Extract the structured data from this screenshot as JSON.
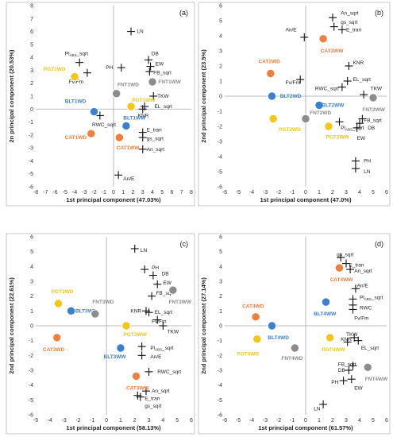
{
  "colors": {
    "orange": "#f07f3c",
    "blue": "#3a7fd0",
    "gray": "#8c8c8c",
    "yellow": "#f5c518"
  },
  "chart_data": [
    {
      "type": "scatter",
      "panel": "(a)",
      "xlabel": "1st principal component (47.03%)",
      "ylabel": "2n principal component (20.53%)",
      "xlim": [
        -8,
        8
      ],
      "ylim": [
        -6,
        8
      ],
      "xticks": [
        -8,
        -7,
        -6,
        -5,
        -4,
        -3,
        -2,
        -1,
        0,
        1,
        2,
        3,
        4,
        5,
        6,
        7,
        8
      ],
      "yticks": [
        -6,
        -5,
        -4,
        -3,
        -2,
        -1,
        0,
        1,
        2,
        3,
        4,
        5,
        6,
        7,
        8
      ],
      "points": [
        {
          "label": "PGT1WD",
          "x": -4.0,
          "y": 2.5,
          "color": "yellow",
          "lx": -7.2,
          "ly": 3.1
        },
        {
          "label": "BLT1WD",
          "x": -2.0,
          "y": -0.2,
          "color": "blue",
          "lx": -5.0,
          "ly": 0.6
        },
        {
          "label": "CAT1WD",
          "x": -2.3,
          "y": -1.9,
          "color": "orange",
          "lx": -5.0,
          "ly": -2.2
        },
        {
          "label": "FNT1WD",
          "x": 0.3,
          "y": 1.2,
          "color": "gray",
          "lx": 0.4,
          "ly": 1.9
        },
        {
          "label": "PGT1WW",
          "x": 1.8,
          "y": 0.2,
          "color": "yellow",
          "lx": 1.9,
          "ly": 0.7
        },
        {
          "label": "BLT1WW",
          "x": 1.3,
          "y": -1.3,
          "color": "blue",
          "lx": 1.0,
          "ly": -0.7
        },
        {
          "label": "CAT1WW",
          "x": 0.6,
          "y": -2.2,
          "color": "orange",
          "lx": 0.3,
          "ly": -3.0
        },
        {
          "label": "FNT1WW",
          "x": 4.0,
          "y": 2.1,
          "color": "gray",
          "lx": 4.6,
          "ly": 2.1
        }
      ],
      "variables": [
        {
          "label": "LN",
          "x": 1.8,
          "y": 6.0,
          "lx": 2.4,
          "ly": 6.0
        },
        {
          "label": "PH",
          "x": 0.8,
          "y": 3.2,
          "lx": -0.8,
          "ly": 3.2
        },
        {
          "label": "DB",
          "x": 3.6,
          "y": 3.8,
          "lx": 3.9,
          "ly": 4.3
        },
        {
          "label": "EW",
          "x": 3.8,
          "y": 3.3,
          "lx": 4.3,
          "ly": 3.5
        },
        {
          "label": "FB_sqrt",
          "x": 3.7,
          "y": 2.9,
          "lx": 4.1,
          "ly": 2.8
        },
        {
          "label": "Pl_ABS_sqrt",
          "x": -3.5,
          "y": 3.6,
          "lx": -5.0,
          "ly": 4.3
        },
        {
          "label": "Fv/Fm",
          "x": -2.7,
          "y": 2.8,
          "lx": -4.6,
          "ly": 2.1
        },
        {
          "label": "TKW",
          "x": 4.1,
          "y": 1.0,
          "lx": 4.5,
          "ly": 1.0
        },
        {
          "label": "EL_sqrt",
          "x": 3.2,
          "y": 0.2,
          "lx": 4.2,
          "ly": 0.2
        },
        {
          "label": "KNR",
          "x": 3.0,
          "y": 0.0,
          "lx": 2.5,
          "ly": -0.5
        },
        {
          "label": "RWC_sqrt",
          "x": -1.4,
          "y": -0.5,
          "lx": -2.2,
          "ly": -1.2
        },
        {
          "label": "E_tran",
          "x": 3.0,
          "y": -1.8,
          "lx": 3.4,
          "ly": -1.6
        },
        {
          "label": "gs_sqrt",
          "x": 3.0,
          "y": -2.2,
          "lx": 3.4,
          "ly": -2.3
        },
        {
          "label": "An_sqrt",
          "x": 3.0,
          "y": -3.1,
          "lx": 3.4,
          "ly": -3.1
        },
        {
          "label": "An/E",
          "x": 0.5,
          "y": -5.1,
          "lx": 1.0,
          "ly": -5.4
        }
      ]
    },
    {
      "type": "scatter",
      "panel": "(b)",
      "xlabel": "1st principal component (47.0%)",
      "ylabel": "2nd principal component (23.5%)",
      "xlim": [
        -6,
        6
      ],
      "ylim": [
        -6,
        6
      ],
      "xticks": [
        -6,
        -5,
        -4,
        -3,
        -2,
        -1,
        0,
        1,
        2,
        3,
        4,
        5,
        6
      ],
      "yticks": [
        -6,
        -5,
        -4,
        -3,
        -2,
        -1,
        0,
        1,
        2,
        3,
        4,
        5,
        6
      ],
      "points": [
        {
          "label": "CAT2WW",
          "x": 1.3,
          "y": 3.8,
          "color": "orange",
          "lx": 1.1,
          "ly": 3.0
        },
        {
          "label": "CAT2WD",
          "x": -2.6,
          "y": 1.5,
          "color": "orange",
          "lx": -3.5,
          "ly": 2.3
        },
        {
          "label": "BLT2WD",
          "x": -2.5,
          "y": 0.0,
          "color": "blue",
          "lx": -1.9,
          "ly": 0.0
        },
        {
          "label": "BLT2WW",
          "x": 1.0,
          "y": -0.6,
          "color": "blue",
          "lx": 1.2,
          "ly": -0.6
        },
        {
          "label": "PGT2WD",
          "x": -2.4,
          "y": -1.5,
          "color": "yellow",
          "lx": -2.0,
          "ly": -2.2
        },
        {
          "label": "FNT2WD",
          "x": 0.0,
          "y": -1.5,
          "color": "gray",
          "lx": 0.3,
          "ly": -1.1
        },
        {
          "label": "PGT2WW",
          "x": 1.7,
          "y": -2.0,
          "color": "yellow",
          "lx": 1.5,
          "ly": -2.7
        },
        {
          "label": "FNT2WW",
          "x": 5.0,
          "y": -0.1,
          "color": "gray",
          "lx": 4.2,
          "ly": -0.9
        }
      ],
      "variables": [
        {
          "label": "An_sqrt",
          "x": 2.0,
          "y": 5.2,
          "lx": 2.6,
          "ly": 5.5
        },
        {
          "label": "gs_sqrt",
          "x": 2.1,
          "y": 4.6,
          "lx": 2.6,
          "ly": 4.9
        },
        {
          "label": "E_tran",
          "x": 2.7,
          "y": 4.4,
          "lx": 3.0,
          "ly": 4.4
        },
        {
          "label": "An/E",
          "x": -0.1,
          "y": 3.9,
          "lx": -1.5,
          "ly": 4.4
        },
        {
          "label": "KNR",
          "x": 3.2,
          "y": 2.0,
          "lx": 3.5,
          "ly": 2.2
        },
        {
          "label": "EL_sqrt",
          "x": 3.1,
          "y": 1.0,
          "lx": 3.5,
          "ly": 1.1
        },
        {
          "label": "RWC_sqrt",
          "x": 2.7,
          "y": 0.6,
          "lx": 0.7,
          "ly": 0.5
        },
        {
          "label": "Fv/Fm",
          "x": -0.4,
          "y": 1.1,
          "lx": -1.5,
          "ly": 0.9
        },
        {
          "label": "TKW",
          "x": 4.3,
          "y": 0.1,
          "lx": 4.8,
          "ly": 0.5
        },
        {
          "label": "FB_sqrt",
          "x": 4.2,
          "y": -1.5,
          "lx": 4.3,
          "ly": -1.6
        },
        {
          "label": "DB",
          "x": 4.0,
          "y": -1.8,
          "lx": 4.6,
          "ly": -2.1
        },
        {
          "label": "EW",
          "x": 3.8,
          "y": -2.1,
          "lx": 3.8,
          "ly": -2.8
        },
        {
          "label": "Pl_ABS_sqrt",
          "x": 2.5,
          "y": -1.7,
          "lx": 2.6,
          "ly": -2.1
        },
        {
          "label": "PH",
          "x": 3.7,
          "y": -4.3,
          "lx": 4.3,
          "ly": -4.3
        },
        {
          "label": "LN",
          "x": 3.7,
          "y": -4.8,
          "lx": 4.3,
          "ly": -5.0
        }
      ]
    },
    {
      "type": "scatter",
      "panel": "(c)",
      "xlabel": "1st principal component (58.13%)",
      "ylabel": "2nd principal component (22.61%)",
      "xlim": [
        -5,
        6
      ],
      "ylim": [
        -6,
        6
      ],
      "xticks": [
        -5,
        -4,
        -3,
        -2,
        -1,
        0,
        1,
        2,
        3,
        4,
        5,
        6
      ],
      "yticks": [
        -6,
        -5,
        -4,
        -3,
        -2,
        -1,
        0,
        1,
        2,
        3,
        4,
        5,
        6
      ],
      "points": [
        {
          "label": "PGT3WD",
          "x": -3.4,
          "y": 1.5,
          "color": "yellow",
          "lx": -3.9,
          "ly": 2.3
        },
        {
          "label": "BLT3WD",
          "x": -2.5,
          "y": 1.0,
          "color": "blue",
          "lx": -2.2,
          "ly": 1.0
        },
        {
          "label": "CAT3WD",
          "x": -3.5,
          "y": -0.8,
          "color": "orange",
          "lx": -4.5,
          "ly": -1.6
        },
        {
          "label": "FNT3WD",
          "x": -0.8,
          "y": 0.8,
          "color": "gray",
          "lx": -1.0,
          "ly": 1.6
        },
        {
          "label": "PGT3WW",
          "x": 1.4,
          "y": 0.0,
          "color": "yellow",
          "lx": 1.2,
          "ly": -0.6
        },
        {
          "label": "BLT3WW",
          "x": 1.0,
          "y": -1.5,
          "color": "blue",
          "lx": -0.2,
          "ly": -2.1
        },
        {
          "label": "CAT3WW",
          "x": 2.1,
          "y": -3.4,
          "color": "orange",
          "lx": 1.4,
          "ly": -4.2
        },
        {
          "label": "FNT3WW",
          "x": 4.7,
          "y": 2.4,
          "color": "gray",
          "lx": 4.4,
          "ly": 1.6
        }
      ],
      "variables": [
        {
          "label": "LN",
          "x": 2.0,
          "y": 5.2,
          "lx": 2.4,
          "ly": 5.1
        },
        {
          "label": "PH",
          "x": 2.7,
          "y": 3.8,
          "lx": 3.2,
          "ly": 3.9
        },
        {
          "label": "DB",
          "x": 3.3,
          "y": 3.4,
          "lx": 3.9,
          "ly": 3.5
        },
        {
          "label": "EW",
          "x": 3.6,
          "y": 2.8,
          "lx": 4.0,
          "ly": 2.9
        },
        {
          "label": "FB_sqrt",
          "x": 3.2,
          "y": 2.0,
          "lx": 3.5,
          "ly": 2.2
        },
        {
          "label": "KNR",
          "x": 2.8,
          "y": 1.0,
          "lx": 1.7,
          "ly": 1.0
        },
        {
          "label": "EL_sqrt",
          "x": 3.0,
          "y": 0.9,
          "lx": 3.4,
          "ly": 0.9
        },
        {
          "label": "Fv/Fm",
          "x": 3.6,
          "y": 0.4,
          "lx": 3.2,
          "ly": 0.3
        },
        {
          "label": "TKW",
          "x": 4.0,
          "y": 0.0,
          "lx": 4.3,
          "ly": -0.4
        },
        {
          "label": "Pl_ABS_sqrt",
          "x": 2.5,
          "y": -1.4,
          "lx": 3.1,
          "ly": -1.5
        },
        {
          "label": "An/E",
          "x": 2.5,
          "y": -2.0,
          "lx": 3.1,
          "ly": -2.1
        },
        {
          "label": "RWC_sqrt",
          "x": 3.0,
          "y": -3.1,
          "lx": 3.6,
          "ly": -3.1
        },
        {
          "label": "An_sqrt",
          "x": 2.8,
          "y": -4.4,
          "lx": 3.2,
          "ly": -4.4
        },
        {
          "label": "E_tran",
          "x": 2.4,
          "y": -4.8,
          "lx": 2.7,
          "ly": -4.9
        },
        {
          "label": "gs_sqrt",
          "x": 2.2,
          "y": -4.7,
          "lx": 2.7,
          "ly": -5.4
        }
      ]
    },
    {
      "type": "scatter",
      "panel": "(d)",
      "xlabel": "1st principal component (61.57%)",
      "ylabel": "2nd principal component (27.14%)",
      "xlim": [
        -6,
        6
      ],
      "ylim": [
        -6,
        6
      ],
      "xticks": [
        -6,
        -5,
        -4,
        -3,
        -2,
        -1,
        0,
        1,
        2,
        3,
        4,
        5,
        6
      ],
      "yticks": [
        -6,
        -5,
        -4,
        -3,
        -2,
        -1,
        0,
        1,
        2,
        3,
        4,
        5,
        6
      ],
      "points": [
        {
          "label": "CAT4WW",
          "x": 2.5,
          "y": 3.9,
          "color": "orange",
          "lx": 1.8,
          "ly": 3.1
        },
        {
          "label": "CAT4WD",
          "x": -3.7,
          "y": 0.6,
          "color": "orange",
          "lx": -4.7,
          "ly": 1.3
        },
        {
          "label": "BLT4WD",
          "x": -2.5,
          "y": 0.0,
          "color": "blue",
          "lx": -2.8,
          "ly": -0.8
        },
        {
          "label": "PGT4WD",
          "x": -3.6,
          "y": -0.9,
          "color": "yellow",
          "lx": -5.1,
          "ly": -1.9
        },
        {
          "label": "FNT4WD",
          "x": -0.8,
          "y": -1.5,
          "color": "gray",
          "lx": -1.8,
          "ly": -2.2
        },
        {
          "label": "BLT4WW",
          "x": 1.5,
          "y": 1.6,
          "color": "blue",
          "lx": 0.6,
          "ly": 0.8
        },
        {
          "label": "PGT4WW",
          "x": 1.8,
          "y": -0.8,
          "color": "yellow",
          "lx": 1.2,
          "ly": -1.6
        },
        {
          "label": "FNT4WW",
          "x": 4.6,
          "y": -2.8,
          "color": "gray",
          "lx": 4.4,
          "ly": -3.6
        }
      ],
      "variables": [
        {
          "label": "gs_sqrt",
          "x": 2.6,
          "y": 4.6,
          "lx": 2.3,
          "ly": 4.8
        },
        {
          "label": "E_tran",
          "x": 3.0,
          "y": 4.2,
          "lx": 3.2,
          "ly": 4.1
        },
        {
          "label": "An_sqrt",
          "x": 3.3,
          "y": 3.8,
          "lx": 3.6,
          "ly": 3.7
        },
        {
          "label": "An/E",
          "x": 3.7,
          "y": 2.5,
          "lx": 3.8,
          "ly": 2.7
        },
        {
          "label": "Pl_ABS_sqrt",
          "x": 3.5,
          "y": 1.8,
          "lx": 4.0,
          "ly": 1.9
        },
        {
          "label": "RWC",
          "x": 3.5,
          "y": 1.4,
          "lx": 4.0,
          "ly": 1.2
        },
        {
          "label": "Fv/Fm",
          "x": 3.5,
          "y": 1.1,
          "lx": 3.6,
          "ly": 0.5
        },
        {
          "label": "TKW",
          "x": 3.6,
          "y": -0.8,
          "lx": 3.0,
          "ly": -0.6
        },
        {
          "label": "KNR",
          "x": 3.1,
          "y": -1.1,
          "lx": 2.6,
          "ly": -0.9
        },
        {
          "label": "EL_sqrt",
          "x": 3.9,
          "y": -1.0,
          "lx": 4.1,
          "ly": -1.5
        },
        {
          "label": "FB_sqrt",
          "x": 3.5,
          "y": -2.7,
          "lx": 2.4,
          "ly": -2.6
        },
        {
          "label": "DB",
          "x": 3.2,
          "y": -3.0,
          "lx": 2.4,
          "ly": -3.0
        },
        {
          "label": "PH",
          "x": 2.8,
          "y": -3.7,
          "lx": 1.9,
          "ly": -3.8
        },
        {
          "label": "EW",
          "x": 3.4,
          "y": -3.6,
          "lx": 3.6,
          "ly": -4.2
        },
        {
          "label": "LN",
          "x": 1.3,
          "y": -5.3,
          "lx": 0.6,
          "ly": -5.6
        }
      ]
    }
  ]
}
